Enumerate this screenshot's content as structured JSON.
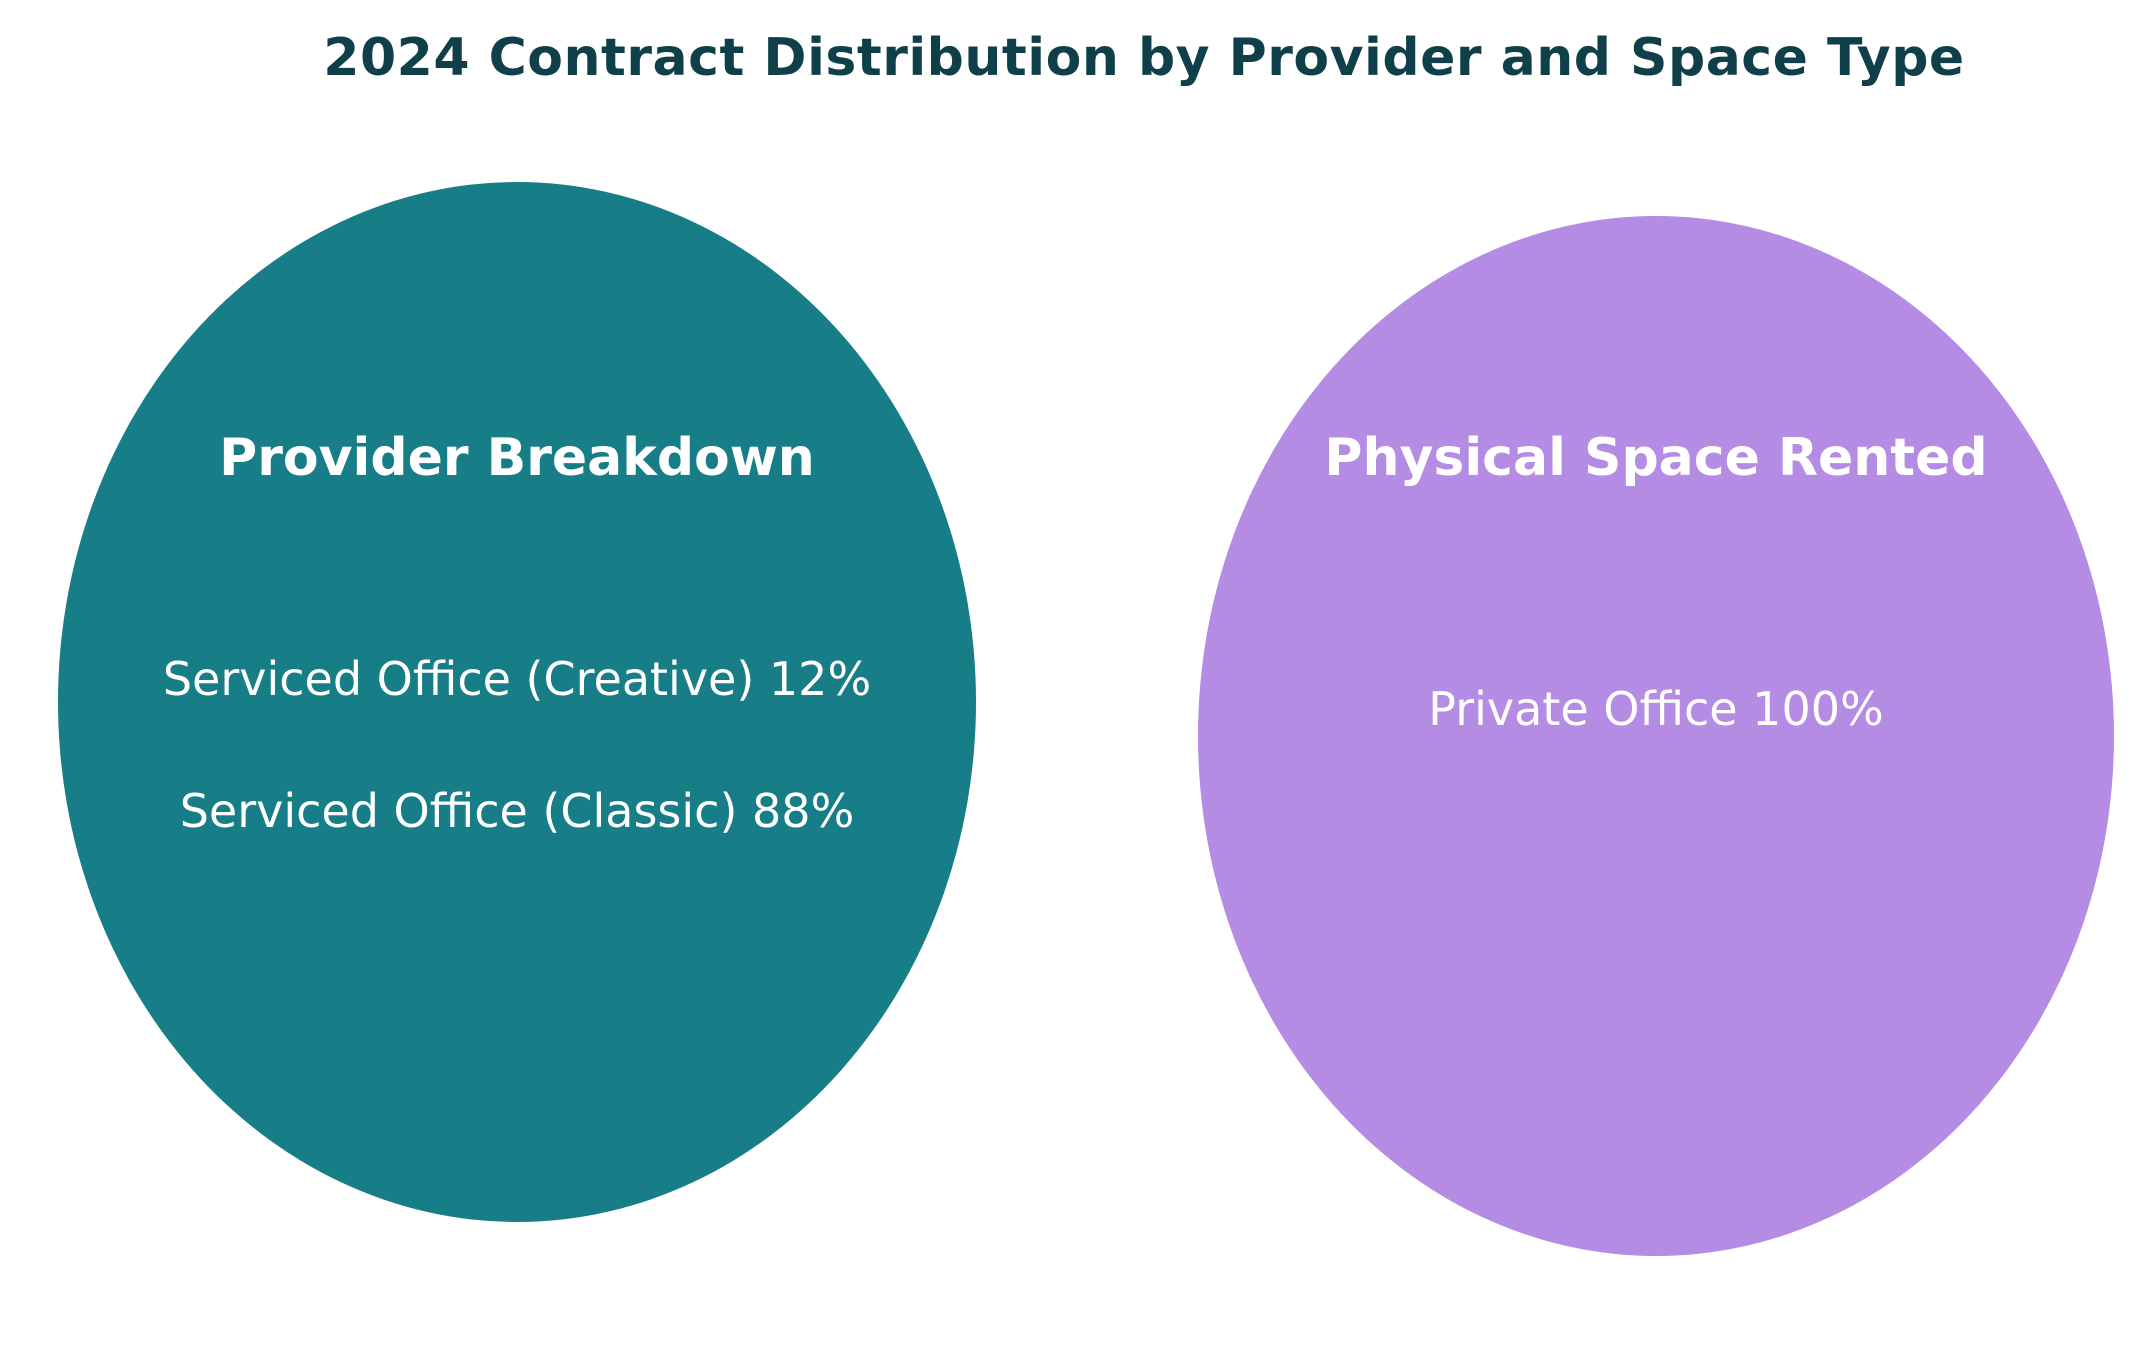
{
  "title": "2024 Contract Distribution by Provider and Space Type",
  "groups": [
    {
      "heading": "Provider Breakdown",
      "color": "#177d87",
      "items": [
        {
          "label": "Serviced Office (Creative) 12%",
          "value": 12
        },
        {
          "label": "Serviced Office (Classic) 88%",
          "value": 88
        }
      ]
    },
    {
      "heading": "Physical Space Rented",
      "color": "#b48ce3",
      "items": [
        {
          "label": "Private Office 100%",
          "value": 100
        }
      ]
    }
  ]
}
